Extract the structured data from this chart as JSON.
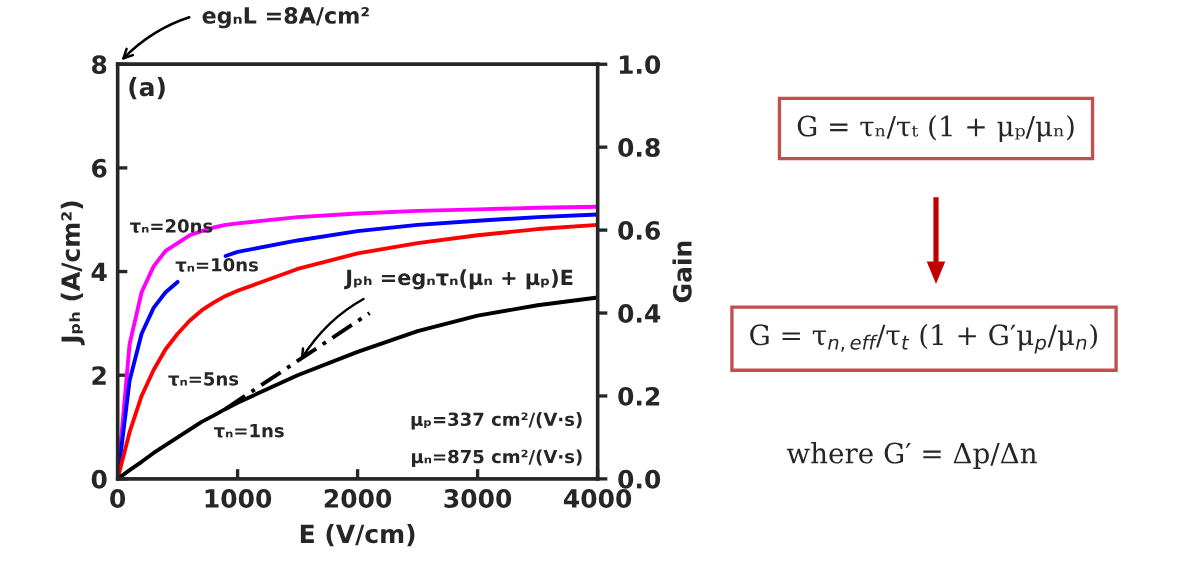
{
  "chart_data": {
    "type": "line",
    "xlabel": "E (V/cm)",
    "ylabel": "Jₚₕ (A/cm²)",
    "y2label": "Gain",
    "x": [
      0,
      100,
      200,
      300,
      400,
      500,
      600,
      700,
      800,
      900,
      1000,
      1500,
      2000,
      2500,
      3000,
      3500,
      4000
    ],
    "series": [
      {
        "name": "τₙ=20ns",
        "color": "#ff00ff",
        "values": [
          0,
          2.6,
          3.6,
          4.1,
          4.4,
          4.55,
          4.7,
          4.78,
          4.85,
          4.9,
          4.93,
          5.05,
          5.12,
          5.17,
          5.2,
          5.23,
          5.25
        ]
      },
      {
        "name": "τₙ=10ns",
        "color": "#0000ff",
        "values": [
          0,
          1.9,
          2.8,
          3.3,
          3.6,
          3.8,
          null,
          null,
          null,
          4.3,
          4.38,
          4.6,
          4.78,
          4.9,
          4.98,
          5.05,
          5.1
        ]
      },
      {
        "name": "τₙ=5ns",
        "color": "#ff0000",
        "values": [
          0,
          0.9,
          1.6,
          2.1,
          2.5,
          2.8,
          3.05,
          3.25,
          3.4,
          3.53,
          3.63,
          4.05,
          4.35,
          4.55,
          4.7,
          4.82,
          4.9
        ]
      },
      {
        "name": "τₙ=1ns",
        "color": "#000000",
        "values": [
          0,
          0.17,
          0.33,
          0.5,
          0.65,
          0.8,
          0.95,
          1.1,
          1.22,
          1.35,
          1.47,
          2.0,
          2.45,
          2.85,
          3.15,
          3.35,
          3.5
        ]
      },
      {
        "color": "#000000",
        "x": [
          900,
          2100
        ],
        "values": [
          1.35,
          3.2
        ],
        "line_style": "dashed"
      }
    ],
    "xlim": [
      0,
      4000
    ],
    "xticks": [
      0,
      1000,
      2000,
      3000,
      4000
    ],
    "ylim": [
      0,
      8
    ],
    "yticks": [
      0,
      2,
      4,
      6,
      8
    ],
    "y2lim": [
      0.0,
      1.0
    ],
    "y2ticks": [
      {
        "value": 0,
        "label": "0.0"
      },
      0.2,
      0.4,
      0.6,
      0.8,
      {
        "value": 1,
        "label": "1.0"
      }
    ],
    "grid": false,
    "legend": false,
    "annotations": [
      "egₙL =8A/cm²",
      "(a)",
      {
        "text": "Jₚₕ =egₙτₙ(μₙ + μₚ)E",
        "x": 1500,
        "y": 2.2
      },
      "μₚ=337 cm²/(V·s)",
      "μₙ=875 cm²/(V·s)",
      "G = τₙ/τₜ (1 + μₚ/μₙ)",
      "G = τ$_{n,eff}$/τ$_{t}$ (1 + G′μ$_{p}$/μ$_{n}$)",
      "where G′ = Δp/Δn"
    ]
  }
}
